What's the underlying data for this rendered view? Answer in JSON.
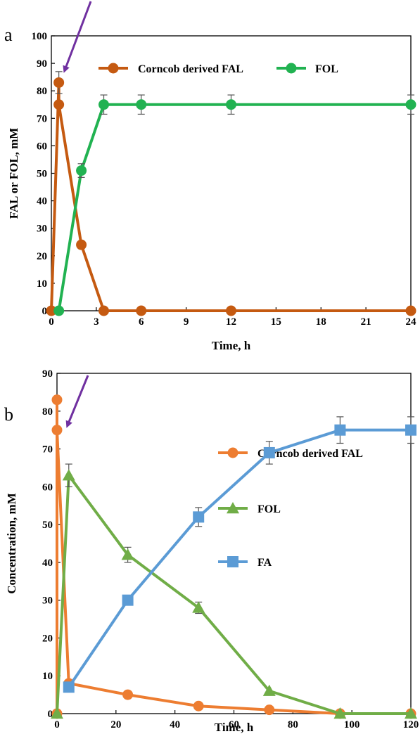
{
  "chart_data": [
    {
      "type": "line",
      "panel_label": "a",
      "xlabel": "Time, h",
      "ylabel": "FAL or FOL, mM",
      "xlim": [
        0,
        24
      ],
      "ylim": [
        0,
        100
      ],
      "xticks": [
        0,
        3,
        6,
        9,
        12,
        15,
        18,
        21,
        24
      ],
      "yticks": [
        0,
        10,
        20,
        30,
        40,
        50,
        60,
        70,
        80,
        90,
        100
      ],
      "grid": false,
      "legend_position": "top-center",
      "annotation": "arrow pointing to FAL peak at ~0.5 h",
      "series": [
        {
          "name": "Corncob derived FAL",
          "color": "#c55a11",
          "marker": "circle",
          "points": [
            [
              0,
              0
            ],
            [
              0.5,
              83
            ],
            [
              0.5,
              75
            ],
            [
              2,
              24
            ],
            [
              3.5,
              0
            ],
            [
              6,
              0
            ],
            [
              12,
              0
            ],
            [
              24,
              0
            ]
          ],
          "errors": [
            0,
            4,
            0,
            0,
            0,
            0,
            0,
            0
          ]
        },
        {
          "name": "FOL",
          "color": "#21b251",
          "marker": "circle",
          "points": [
            [
              0.5,
              0
            ],
            [
              2,
              51
            ],
            [
              3.5,
              75
            ],
            [
              6,
              75
            ],
            [
              12,
              75
            ],
            [
              24,
              75
            ]
          ],
          "errors": [
            0,
            2.5,
            3.5,
            3.5,
            3.5,
            3.5
          ]
        }
      ]
    },
    {
      "type": "line",
      "panel_label": "b",
      "xlabel": "Time, h",
      "ylabel": "Concentration, mM",
      "xlim": [
        0,
        120
      ],
      "ylim": [
        0,
        90
      ],
      "xticks": [
        0,
        20,
        40,
        60,
        80,
        100,
        120
      ],
      "yticks": [
        0,
        10,
        20,
        30,
        40,
        50,
        60,
        70,
        80,
        90
      ],
      "grid": false,
      "legend_position": "center-right",
      "annotation": "arrow pointing to FAL peak at ~0 h",
      "series": [
        {
          "name": "Corncob derived FAL",
          "color": "#ed7d31",
          "marker": "circle",
          "points": [
            [
              0,
              0
            ],
            [
              0,
              83
            ],
            [
              0,
              75
            ],
            [
              4,
              8
            ],
            [
              24,
              5
            ],
            [
              48,
              2
            ],
            [
              72,
              1
            ],
            [
              96,
              0
            ],
            [
              120,
              0
            ]
          ],
          "errors": [
            0,
            0,
            0,
            0,
            0,
            0,
            0,
            0,
            0
          ]
        },
        {
          "name": "FOL",
          "color": "#70ad47",
          "marker": "triangle",
          "points": [
            [
              0,
              0
            ],
            [
              4,
              63
            ],
            [
              24,
              42
            ],
            [
              48,
              28
            ],
            [
              72,
              6
            ],
            [
              96,
              0
            ],
            [
              120,
              0
            ]
          ],
          "errors": [
            0,
            3,
            2,
            1.5,
            0,
            0,
            0
          ]
        },
        {
          "name": "FA",
          "color": "#5b9bd5",
          "marker": "square",
          "points": [
            [
              4,
              7
            ],
            [
              24,
              30
            ],
            [
              48,
              52
            ],
            [
              72,
              69
            ],
            [
              96,
              75
            ],
            [
              120,
              75
            ]
          ],
          "errors": [
            0,
            0,
            2.5,
            3,
            3.5,
            3.5
          ]
        }
      ]
    }
  ],
  "colors": {
    "arrow": "#7030a0",
    "axis": "#000000"
  }
}
